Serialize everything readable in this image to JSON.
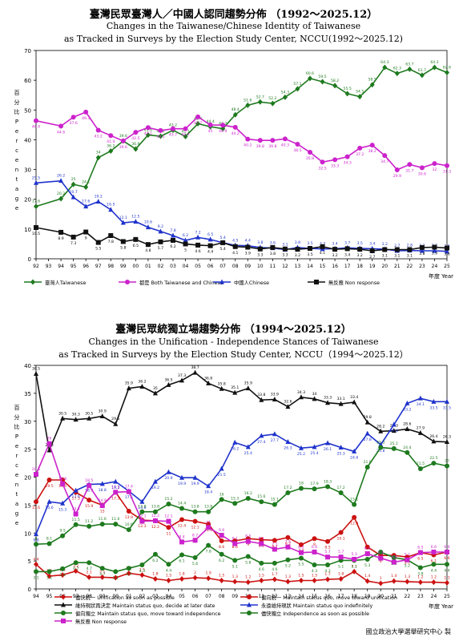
{
  "chart_data": [
    {
      "type": "line",
      "title": "臺灣民眾臺灣人／中國人認同趨勢分佈 （1992～2025.12）",
      "subtitle_1": "Changes in the Taiwanese/Chinese Identity of Taiwanese",
      "subtitle_2": "as Tracked in Surveys by the Election Study Center, NCCU(1992～2025.12)",
      "ylabel": "百分比 Percentage",
      "xlabel": "年度 Year",
      "ylim": [
        0,
        70
      ],
      "yticks": [
        0,
        10,
        20,
        30,
        40,
        50,
        60,
        70
      ],
      "xticks": [
        "92",
        "93",
        "94",
        "95",
        "96",
        "97",
        "98",
        "99",
        "00",
        "01",
        "02",
        "03",
        "04",
        "05",
        "06",
        "07",
        "08",
        "09",
        "10",
        "11",
        "12",
        "13",
        "14",
        "15",
        "16",
        "17",
        "18",
        "19",
        "20",
        "21",
        "22",
        "23",
        "24",
        "25"
      ],
      "x": [
        1992,
        1994,
        1995,
        1996,
        1997,
        1998,
        1999,
        2000,
        2001,
        2002,
        2003,
        2004,
        2005,
        2006,
        2007,
        2008,
        2009,
        2010,
        2011,
        2012,
        2013,
        2014,
        2015,
        2016,
        2017,
        2018,
        2019,
        2020,
        2021,
        2022,
        2023,
        2024,
        2025
      ],
      "grid": false,
      "legend_position": "bottom",
      "series": [
        {
          "name": "臺灣人Taiwanese",
          "color": "#1e7a1e",
          "marker": "diamond",
          "values": [
            17.6,
            20.2,
            25.0,
            24.1,
            34.0,
            36.2,
            39.6,
            36.9,
            41.6,
            41.2,
            43.2,
            41.1,
            45.4,
            44.4,
            43.7,
            48.4,
            51.6,
            52.7,
            52.2,
            54.3,
            57.1,
            60.6,
            59.5,
            58.2,
            55.5,
            54.5,
            58.5,
            64.3,
            62.3,
            63.7,
            61.7,
            64.3,
            62.6
          ]
        },
        {
          "name": "都是 Both Taiwanese and Chinese",
          "color": "#cc22cc",
          "marker": "circle",
          "values": [
            46.4,
            44.6,
            47.6,
            49.3,
            43.2,
            41.4,
            39.6,
            42.5,
            44.1,
            43.1,
            43.7,
            43.7,
            47.7,
            45.0,
            44.9,
            44.2,
            40.2,
            39.8,
            39.8,
            40.3,
            38.5,
            35.8,
            32.5,
            33.3,
            34.3,
            37.2,
            38.2,
            34.7,
            29.9,
            31.7,
            30.6,
            32.0,
            31.3
          ]
        },
        {
          "name": "中國人Chinese",
          "color": "#1f33cc",
          "marker": "triangle",
          "values": [
            25.5,
            26.2,
            20.7,
            17.6,
            19.2,
            16.5,
            12.1,
            12.5,
            10.6,
            9.2,
            7.8,
            6.2,
            7.2,
            6.5,
            5.4,
            4.5,
            4.4,
            3.8,
            3.6,
            3.1,
            3.8,
            3.5,
            3.3,
            3.4,
            3.7,
            3.5,
            3.4,
            3.2,
            2.7,
            2.8,
            2.7,
            2.7,
            2.5
          ]
        },
        {
          "name": "無反應 Non response",
          "color": "#111111",
          "marker": "square",
          "values": [
            10.5,
            8.9,
            7.3,
            9.0,
            5.5,
            7.8,
            5.8,
            6.5,
            4.8,
            5.7,
            6.2,
            5.0,
            4.6,
            4.4,
            5.4,
            4.1,
            3.9,
            3.3,
            3.8,
            3.3,
            3.2,
            3.5,
            4.1,
            3.2,
            3.4,
            3.2,
            2.7,
            3.1,
            3.1,
            3.1,
            3.8,
            3.9,
            3.6
          ]
        }
      ]
    },
    {
      "type": "line",
      "title": "臺灣民眾統獨立場趨勢分佈 （1994～2025.12）",
      "subtitle_1": "Changes in the Unification - Independence Stances of Taiwanese",
      "subtitle_2": "as Tracked in Surveys by the Election Study Center, NCCU（1994～2025.12）",
      "ylabel": "百分比 Percentage",
      "xlabel": "年度 Year",
      "ylim": [
        0,
        40
      ],
      "yticks": [
        0,
        5,
        10,
        15,
        20,
        25,
        30,
        35,
        40
      ],
      "xticks": [
        "94",
        "95",
        "96",
        "97",
        "98",
        "99",
        "00",
        "01",
        "02",
        "03",
        "04",
        "05",
        "06",
        "07",
        "08",
        "09",
        "10",
        "11",
        "12",
        "13",
        "14",
        "15",
        "16",
        "17",
        "18",
        "19",
        "20",
        "21",
        "22",
        "23",
        "24",
        "25"
      ],
      "x": [
        1994,
        1995,
        1996,
        1997,
        1998,
        1999,
        2000,
        2001,
        2002,
        2003,
        2004,
        2005,
        2006,
        2007,
        2008,
        2009,
        2010,
        2011,
        2012,
        2013,
        2014,
        2015,
        2016,
        2017,
        2018,
        2019,
        2020,
        2021,
        2022,
        2023,
        2024,
        2025
      ],
      "grid": false,
      "legend_position": "bottom",
      "series": [
        {
          "name": "儘快統一 Unification as soon as possible",
          "color": "#cc1111",
          "marker": "diamond",
          "values": [
            4.4,
            2.3,
            2.5,
            3.2,
            2.1,
            2.1,
            2.0,
            2.8,
            2.5,
            1.8,
            1.5,
            1.8,
            2.0,
            1.9,
            1.5,
            1.3,
            1.2,
            1.5,
            1.7,
            1.3,
            1.5,
            1.5,
            1.7,
            1.8,
            3.1,
            1.4,
            1.0,
            1.4,
            1.3,
            1.2,
            1.2,
            1.1
          ]
        },
        {
          "name": "偏向統一 Maintain status quo, move toward unification",
          "color": "#cc1111",
          "marker": "circle",
          "values": [
            15.6,
            19.5,
            19.5,
            17.3,
            15.9,
            15.0,
            17.3,
            13.9,
            12.3,
            12.2,
            11.0,
            12.4,
            12.1,
            11.6,
            8.6,
            8.6,
            9.0,
            8.8,
            8.7,
            9.2,
            7.9,
            9.0,
            8.5,
            10.1,
            12.8,
            7.5,
            6.0,
            6.0,
            5.7,
            6.5,
            6.1,
            6.6
          ]
        },
        {
          "name": "維持現狀再決定 Maintain status quo, decide at later date",
          "color": "#111111",
          "marker": "triangle",
          "values": [
            38.5,
            24.8,
            30.5,
            30.3,
            30.5,
            30.9,
            29.5,
            35.9,
            36.2,
            35.0,
            36.5,
            37.3,
            38.7,
            36.8,
            35.8,
            35.1,
            35.9,
            33.8,
            33.9,
            32.6,
            34.3,
            34.0,
            33.3,
            33.1,
            33.4,
            29.8,
            28.2,
            28.3,
            28.6,
            27.9,
            26.4,
            26.3
          ]
        },
        {
          "name": "永遠維持現狀 Maintain status quo indefinitely",
          "color": "#1f33cc",
          "marker": "triangle",
          "values": [
            9.8,
            15.6,
            15.3,
            17.6,
            18.7,
            18.8,
            19.2,
            17.5,
            15.6,
            19.2,
            20.9,
            19.9,
            19.9,
            18.4,
            21.5,
            26.2,
            25.4,
            27.4,
            27.7,
            26.3,
            25.2,
            25.4,
            26.1,
            25.3,
            24.6,
            27.8,
            25.8,
            29.4,
            33.2,
            34.1,
            33.5,
            33.5
          ]
        },
        {
          "name": "偏向獨立 Maintain status quo, move toward independence",
          "color": "#1e7a1e",
          "marker": "circle",
          "values": [
            8.0,
            8.1,
            9.5,
            11.5,
            11.2,
            11.6,
            11.6,
            10.6,
            13.8,
            13.8,
            15.2,
            14.4,
            13.8,
            13.8,
            16.0,
            15.3,
            16.2,
            15.6,
            15.1,
            17.2,
            18.0,
            17.9,
            18.3,
            17.2,
            15.1,
            21.8,
            25.3,
            25.1,
            24.4,
            21.5,
            22.5,
            22.0
          ]
        },
        {
          "name": "儘快獨立 Independence as soon as possible",
          "color": "#1e7a1e",
          "marker": "circle",
          "values": [
            3.1,
            3.1,
            3.6,
            4.7,
            4.7,
            3.7,
            3.1,
            3.7,
            4.3,
            6.2,
            4.4,
            6.1,
            5.6,
            7.8,
            6.2,
            5.1,
            5.8,
            4.6,
            4.6,
            5.2,
            5.5,
            4.3,
            4.3,
            5.1,
            5.1,
            5.3,
            6.6,
            5.6,
            5.2,
            3.8,
            4.4,
            4.4
          ]
        },
        {
          "name": "無反應 Non response",
          "color": "#cc22cc",
          "marker": "square",
          "values": [
            20.5,
            26.0,
            18.8,
            13.4,
            18.5,
            14.9,
            17.3,
            17.4,
            12.1,
            12.2,
            12.1,
            8.4,
            8.7,
            11.0,
            9.6,
            8.1,
            8.5,
            8.1,
            7.1,
            7.5,
            6.5,
            6.6,
            5.7,
            5.7,
            5.3,
            6.3,
            5.5,
            4.8,
            5.2,
            6.5,
            6.6,
            6.6
          ]
        }
      ]
    }
  ],
  "credit": "國立政治大學選舉研究中心 製"
}
